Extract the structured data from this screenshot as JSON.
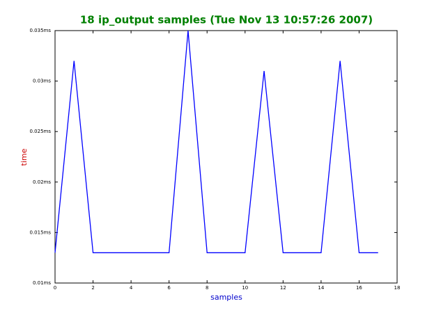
{
  "chart_data": {
    "type": "line",
    "title": "18 ip_output samples (Tue Nov 13 10:57:26 2007)",
    "x_label": "samples",
    "y_label": "time",
    "x": [
      0,
      1,
      2,
      3,
      4,
      5,
      6,
      7,
      8,
      9,
      10,
      11,
      12,
      13,
      14,
      15,
      16,
      17
    ],
    "series": [
      {
        "color": "#0000ff",
        "values": [
          0.013,
          0.032,
          0.013,
          0.013,
          0.013,
          0.013,
          0.013,
          0.035,
          0.013,
          0.013,
          0.013,
          0.031,
          0.013,
          0.013,
          0.013,
          0.032,
          0.013,
          0.013
        ]
      }
    ],
    "xlim": [
      0,
      18
    ],
    "xticks": [
      0,
      2,
      4,
      6,
      8,
      10,
      12,
      14,
      16,
      18
    ],
    "ylim": [
      0.01,
      0.035
    ],
    "yticks": [
      {
        "value": 0.01,
        "label": "0.01ms"
      },
      {
        "value": 0.015,
        "label": "0.015ms"
      },
      {
        "value": 0.02,
        "label": "0.02ms"
      },
      {
        "value": 0.025,
        "label": "0.025ms"
      },
      {
        "value": 0.03,
        "label": "0.03ms"
      },
      {
        "value": 0.035,
        "label": "0.035ms"
      }
    ]
  }
}
